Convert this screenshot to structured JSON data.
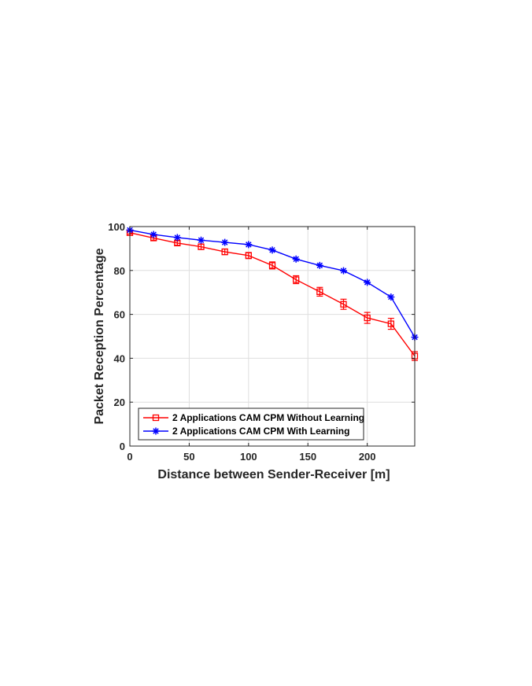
{
  "chart_data": {
    "type": "line",
    "title": "",
    "xlabel": "Distance between Sender-Receiver [m]",
    "ylabel": "Packet Reception Percentage",
    "xlim": [
      0,
      240
    ],
    "ylim": [
      0,
      100
    ],
    "xticks": [
      0,
      50,
      100,
      150,
      200
    ],
    "yticks": [
      0,
      20,
      40,
      60,
      80,
      100
    ],
    "grid": true,
    "legend_position": "bottom-left",
    "x": [
      0,
      20,
      40,
      60,
      80,
      100,
      120,
      140,
      160,
      180,
      200,
      220,
      240
    ],
    "series": [
      {
        "name": "2 Applications CAM CPM Without Learning",
        "color": "#ff0000",
        "marker": "square",
        "values": [
          97.2,
          94.8,
          92.5,
          90.8,
          88.5,
          86.8,
          82.3,
          75.8,
          70.3,
          64.6,
          58.4,
          55.7,
          41.0
        ],
        "error": [
          0.6,
          1.0,
          1.0,
          1.2,
          1.3,
          1.4,
          1.6,
          1.8,
          2.0,
          2.3,
          2.5,
          2.5,
          2.0
        ]
      },
      {
        "name": "2 Applications CAM CPM With Learning",
        "color": "#0000ff",
        "marker": "asterisk",
        "values": [
          98.4,
          96.4,
          95.0,
          93.8,
          92.8,
          91.8,
          89.3,
          85.2,
          82.3,
          79.9,
          74.6,
          67.9,
          49.6
        ],
        "error": [
          0.4,
          0.5,
          0.5,
          0.5,
          0.5,
          0.5,
          0.5,
          0.5,
          0.5,
          0.5,
          0.5,
          0.5,
          0.5
        ]
      }
    ]
  }
}
